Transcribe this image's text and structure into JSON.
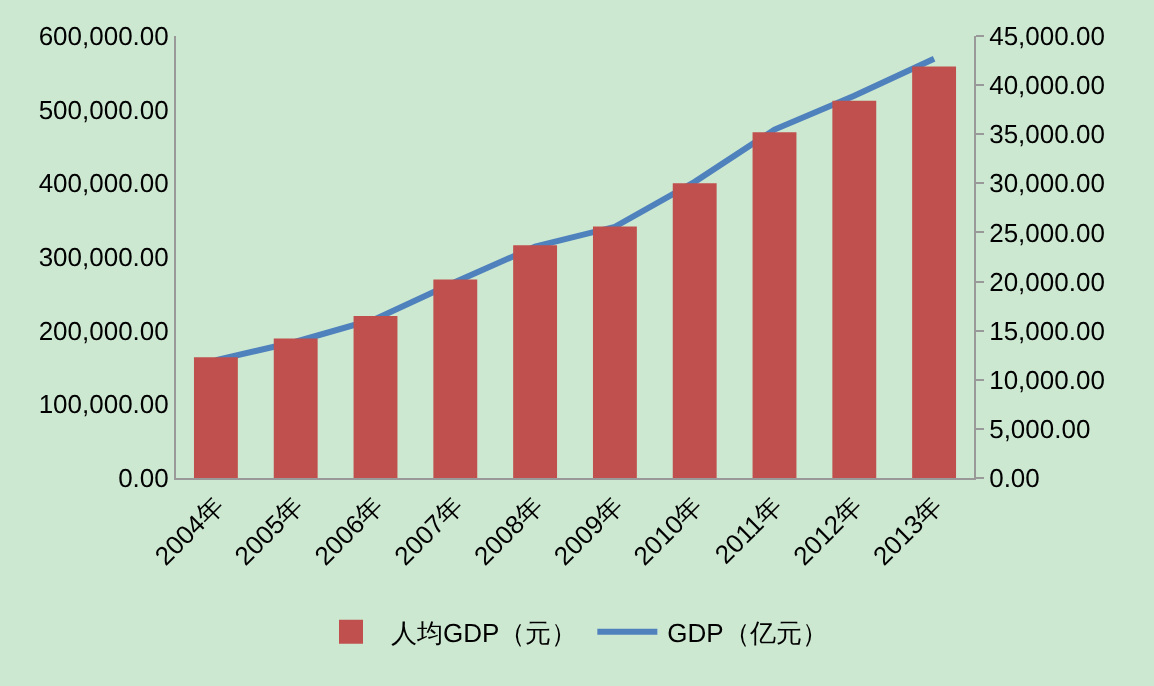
{
  "chart_data": {
    "type": "bar",
    "categories": [
      "2004年",
      "2005年",
      "2006年",
      "2007年",
      "2008年",
      "2009年",
      "2010年",
      "2011年",
      "2012年",
      "2013年"
    ],
    "series": [
      {
        "name": "人均GDP（元）",
        "axis": "y2",
        "color": "#c0504d",
        "values": [
          12300,
          14200,
          16500,
          20200,
          23700,
          25600,
          30000,
          35200,
          38400,
          41900
        ]
      },
      {
        "name": "GDP（亿元）",
        "type": "line",
        "axis": "y",
        "color": "#4f81bd",
        "values": [
          160000,
          185000,
          216000,
          266000,
          314000,
          341000,
          402000,
          473000,
          519000,
          569000
        ]
      }
    ],
    "ylim": [
      0,
      600000
    ],
    "yticks": [
      {
        "value": 0,
        "label": "0.00"
      },
      {
        "value": 100000,
        "label": "100,000.00"
      },
      {
        "value": 200000,
        "label": "200,000.00"
      },
      {
        "value": 300000,
        "label": "300,000.00"
      },
      {
        "value": 400000,
        "label": "400,000.00"
      },
      {
        "value": 500000,
        "label": "500,000.00"
      },
      {
        "value": 600000,
        "label": "600,000.00"
      }
    ],
    "y2lim": [
      0,
      45000
    ],
    "y2ticks": [
      {
        "value": 0,
        "label": "0.00"
      },
      {
        "value": 5000,
        "label": "5,000.00"
      },
      {
        "value": 10000,
        "label": "10,000.00"
      },
      {
        "value": 15000,
        "label": "15,000.00"
      },
      {
        "value": 20000,
        "label": "20,000.00"
      },
      {
        "value": 25000,
        "label": "25,000.00"
      },
      {
        "value": 30000,
        "label": "30,000.00"
      },
      {
        "value": 35000,
        "label": "35,000.00"
      },
      {
        "value": 40000,
        "label": "40,000.00"
      },
      {
        "value": 45000,
        "label": "45,000.00"
      }
    ],
    "grid": false,
    "legend": "bottom",
    "marker": "none",
    "line_style": "solid"
  }
}
